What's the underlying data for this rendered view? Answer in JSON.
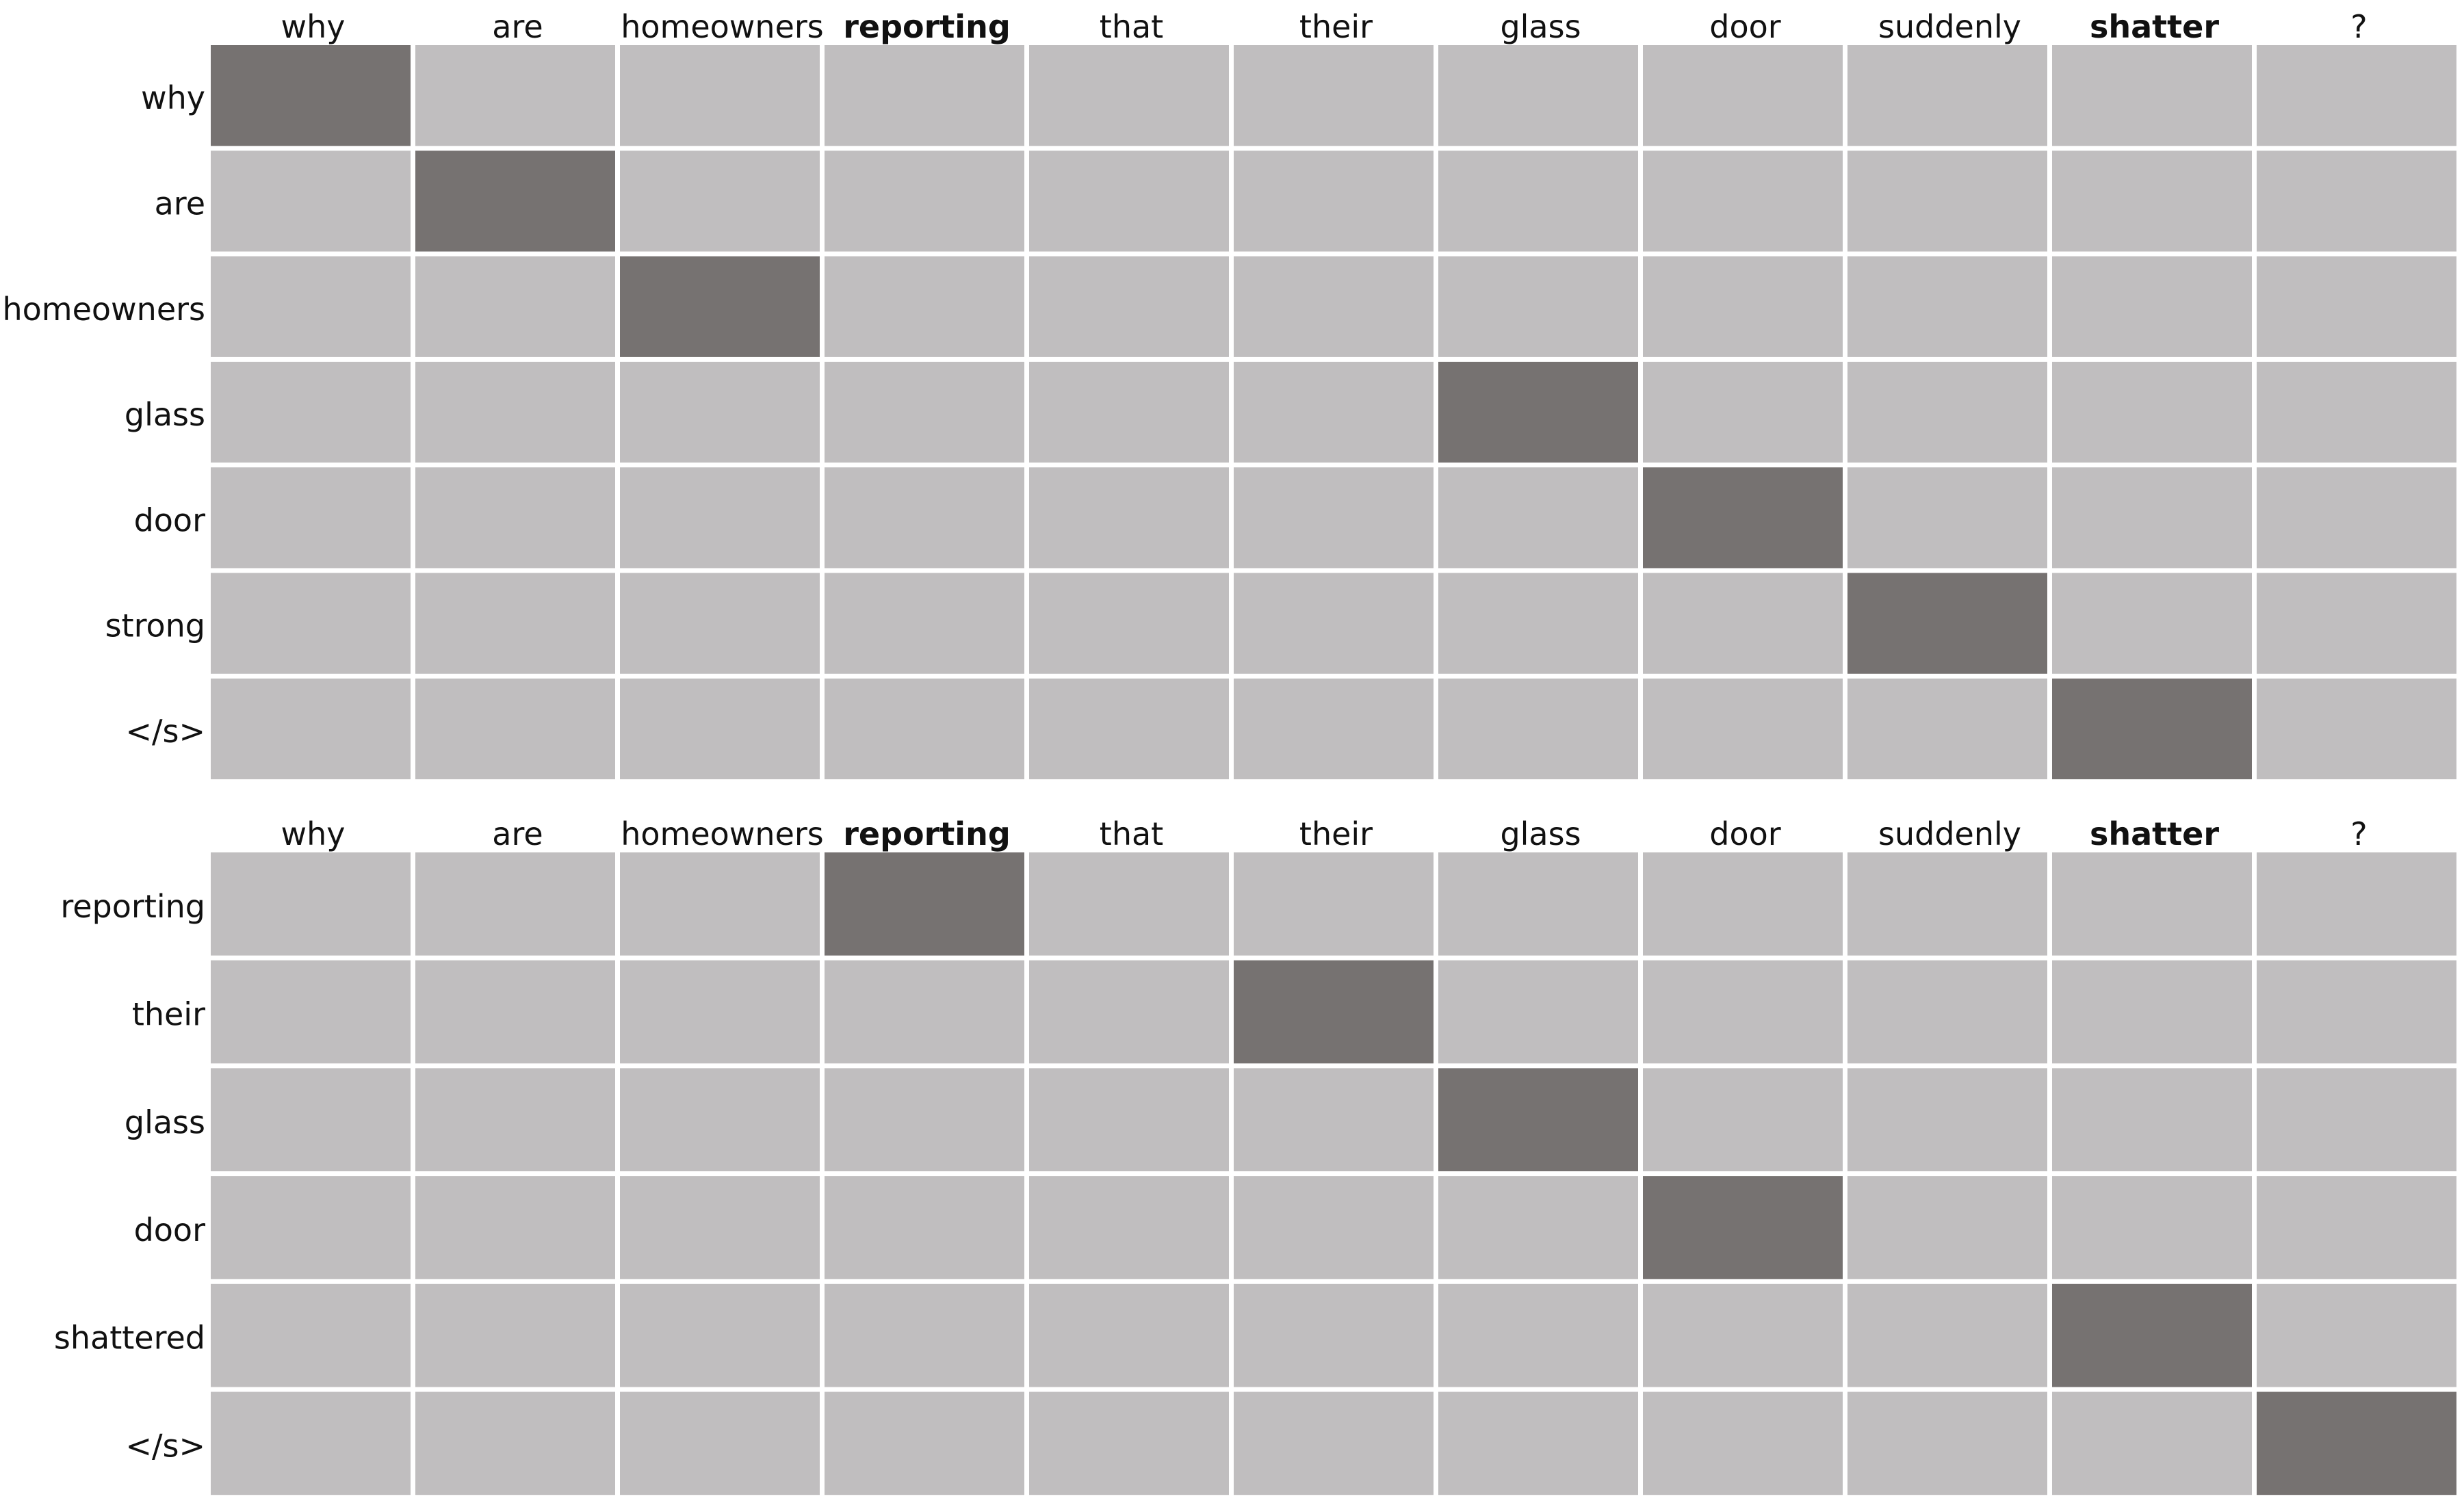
{
  "colors": {
    "background": "#ffffff",
    "cell_low": "#c0bebf",
    "cell_high": "#767271",
    "gridline": "#ffffff",
    "text": "#111111"
  },
  "chart_data": [
    {
      "type": "heatmap",
      "x_labels": [
        "why",
        "are",
        "homeowners",
        "reporting",
        "that",
        "their",
        "glass",
        "door",
        "suddenly",
        "shatter",
        "?"
      ],
      "x_labels_bold": [
        "reporting",
        "shatter"
      ],
      "y_labels": [
        "why",
        "are",
        "homeowners",
        "glass",
        "door",
        "strong",
        "</s>"
      ],
      "values": [
        [
          1,
          0,
          0,
          0,
          0,
          0,
          0,
          0,
          0,
          0,
          0
        ],
        [
          0,
          1,
          0,
          0,
          0,
          0,
          0,
          0,
          0,
          0,
          0
        ],
        [
          0,
          0,
          1,
          0,
          0,
          0,
          0,
          0,
          0,
          0,
          0
        ],
        [
          0,
          0,
          0,
          0,
          0,
          0,
          1,
          0,
          0,
          0,
          0
        ],
        [
          0,
          0,
          0,
          0,
          0,
          0,
          0,
          1,
          0,
          0,
          0
        ],
        [
          0,
          0,
          0,
          0,
          0,
          0,
          0,
          0,
          1,
          0,
          0
        ],
        [
          0,
          0,
          0,
          0,
          0,
          0,
          0,
          0,
          0,
          1,
          0
        ]
      ],
      "grid": true,
      "legend": "none"
    },
    {
      "type": "heatmap",
      "x_labels": [
        "why",
        "are",
        "homeowners",
        "reporting",
        "that",
        "their",
        "glass",
        "door",
        "suddenly",
        "shatter",
        "?"
      ],
      "x_labels_bold": [
        "reporting",
        "shatter"
      ],
      "y_labels": [
        "reporting",
        "their",
        "glass",
        "door",
        "shattered",
        "</s>"
      ],
      "values": [
        [
          0,
          0,
          0,
          1,
          0,
          0,
          0,
          0,
          0,
          0,
          0
        ],
        [
          0,
          0,
          0,
          0,
          0,
          1,
          0,
          0,
          0,
          0,
          0
        ],
        [
          0,
          0,
          0,
          0,
          0,
          0,
          1,
          0,
          0,
          0,
          0
        ],
        [
          0,
          0,
          0,
          0,
          0,
          0,
          0,
          1,
          0,
          0,
          0
        ],
        [
          0,
          0,
          0,
          0,
          0,
          0,
          0,
          0,
          0,
          1,
          0
        ],
        [
          0,
          0,
          0,
          0,
          0,
          0,
          0,
          0,
          0,
          0,
          1
        ]
      ],
      "grid": true,
      "legend": "none"
    }
  ]
}
